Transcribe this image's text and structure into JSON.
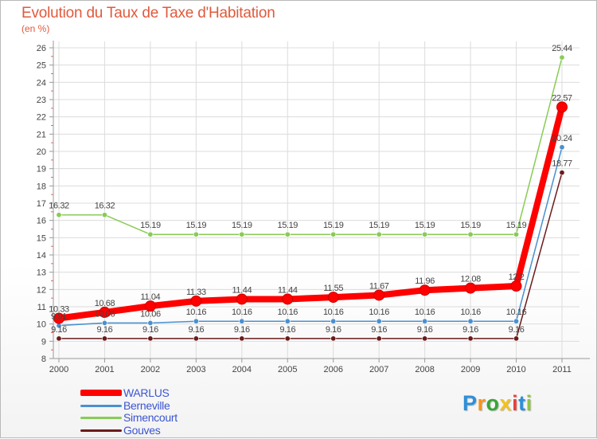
{
  "header": {
    "title": "Evolution du Taux de Taxe d'Habitation",
    "unit": "(en %)"
  },
  "logo": {
    "letters": [
      "P",
      "r",
      "o",
      "x",
      "i",
      "t",
      "i"
    ],
    "colors": [
      "#2e8fd8",
      "#f7941d",
      "#3aa535",
      "#f4c21b",
      "#e8413a",
      "#2e8fd8",
      "#8cc63f"
    ]
  },
  "chart_data": {
    "type": "line",
    "title": "Evolution du Taux de Taxe d'Habitation",
    "ylabel": "(en %)",
    "xlabel": "",
    "ylim": [
      8,
      26
    ],
    "yticks": [
      "8",
      "9",
      "10",
      "11",
      "12",
      "13",
      "14",
      "15",
      "16",
      "17",
      "18",
      "19",
      "20",
      "21",
      "22",
      "23",
      "24",
      "25",
      "26"
    ],
    "categories": [
      "2000",
      "2001",
      "2002",
      "2003",
      "2004",
      "2005",
      "2006",
      "2007",
      "2008",
      "2009",
      "2010",
      "2011"
    ],
    "grid": true,
    "series": [
      {
        "name": "Gouves",
        "color": "#6b1b1b",
        "values": [
          9.16,
          9.16,
          9.16,
          9.16,
          9.16,
          9.16,
          9.16,
          9.16,
          9.16,
          9.16,
          9.16,
          18.77
        ],
        "labels": [
          "9.16",
          "9.16",
          "9.16",
          "9.16",
          "9.16",
          "9.16",
          "9.16",
          "9.16",
          "9.16",
          "9.16",
          "9.16",
          "18.77"
        ]
      },
      {
        "name": "Berneville",
        "color": "#4a90d0",
        "values": [
          9.91,
          10.06,
          10.06,
          10.16,
          10.16,
          10.16,
          10.16,
          10.16,
          10.16,
          10.16,
          10.16,
          20.24
        ],
        "labels": [
          "9.91",
          "10.06",
          "10.06",
          "10.16",
          "10.16",
          "10.16",
          "10.16",
          "10.16",
          "10.16",
          "10.16",
          "10.16",
          "20.24"
        ]
      },
      {
        "name": "Simencourt",
        "color": "#88cc55",
        "values": [
          16.32,
          16.32,
          15.19,
          15.19,
          15.19,
          15.19,
          15.19,
          15.19,
          15.19,
          15.19,
          15.19,
          25.44
        ],
        "labels": [
          "16.32",
          "16.32",
          "15.19",
          "15.19",
          "15.19",
          "15.19",
          "15.19",
          "15.19",
          "15.19",
          "15.19",
          "15.19",
          "25.44"
        ]
      },
      {
        "name": "WARLUS",
        "color": "#ff0000",
        "values": [
          10.33,
          10.68,
          11.04,
          11.33,
          11.44,
          11.44,
          11.55,
          11.67,
          11.96,
          12.08,
          12.2,
          22.57
        ],
        "labels": [
          "10.33",
          "10.68",
          "11.04",
          "11.33",
          "11.44",
          "11.44",
          "11.55",
          "11.67",
          "11.96",
          "12.08",
          "12.2",
          "22.57"
        ]
      }
    ],
    "legend": [
      {
        "name": "WARLUS",
        "color": "#ff0000"
      },
      {
        "name": "Berneville",
        "color": "#4a90d0"
      },
      {
        "name": "Simencourt",
        "color": "#88cc55"
      },
      {
        "name": "Gouves",
        "color": "#6b1b1b"
      }
    ]
  }
}
